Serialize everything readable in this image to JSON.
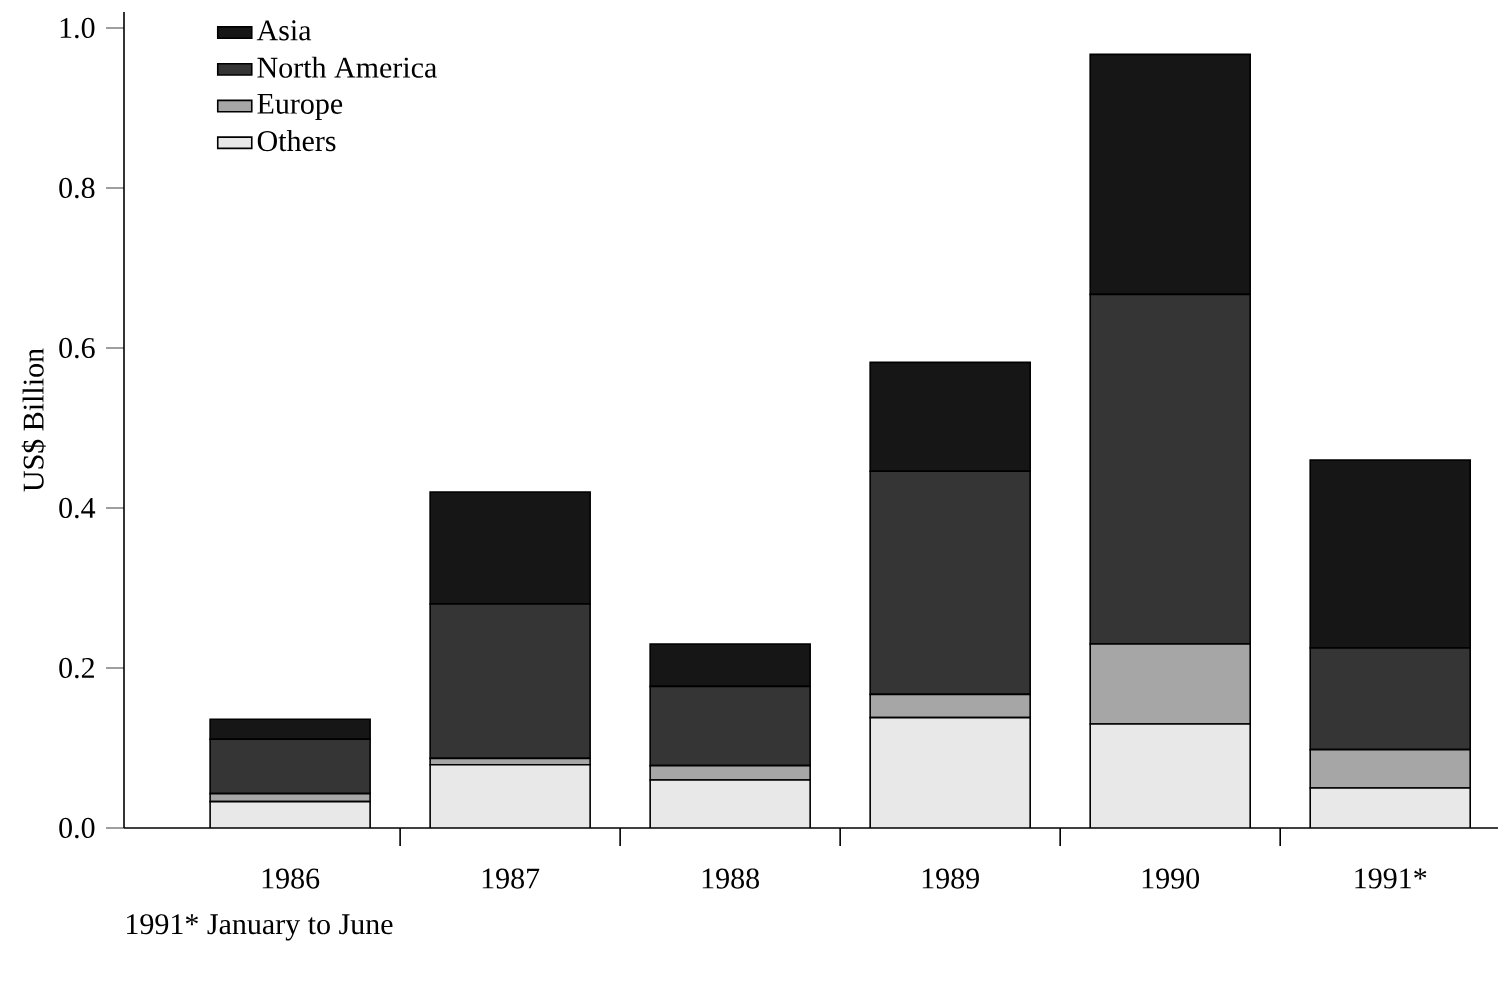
{
  "chart_data": {
    "type": "bar",
    "stacked": true,
    "ylabel": "US$ Billion",
    "categories": [
      "1986",
      "1987",
      "1988",
      "1989",
      "1990",
      "1991*"
    ],
    "series": [
      {
        "name": "Others",
        "color": "#e8e8e8",
        "values": [
          0.033,
          0.079,
          0.06,
          0.138,
          0.13,
          0.05
        ]
      },
      {
        "name": "Europe",
        "color": "#a6a6a6",
        "values": [
          0.01,
          0.008,
          0.018,
          0.029,
          0.1,
          0.048
        ]
      },
      {
        "name": "North America",
        "color": "#353535",
        "values": [
          0.068,
          0.193,
          0.099,
          0.279,
          0.437,
          0.127
        ]
      },
      {
        "name": "Asia",
        "color": "#161616",
        "values": [
          0.025,
          0.14,
          0.053,
          0.136,
          0.3,
          0.235
        ]
      }
    ],
    "ylim": [
      0,
      1.02
    ],
    "yticks": [
      {
        "value": 0,
        "label": "0.0"
      },
      {
        "value": 0.2,
        "label": "0.2"
      },
      {
        "value": 0.4,
        "label": "0.4"
      },
      {
        "value": 0.6,
        "label": "0.6"
      },
      {
        "value": 0.8,
        "label": "0.8"
      },
      {
        "value": 1.0,
        "label": "1.0"
      }
    ],
    "legend": "top left",
    "grid": false,
    "annotations": [
      "1991* January to June"
    ]
  }
}
